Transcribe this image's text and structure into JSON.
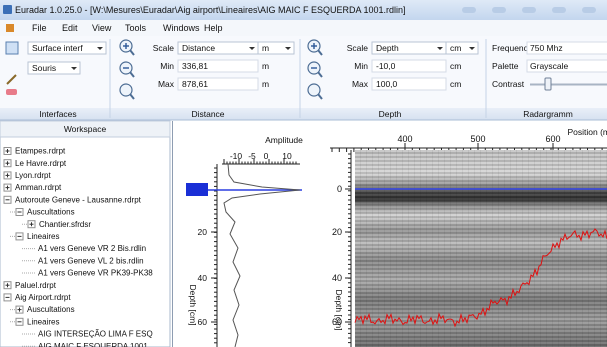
{
  "window": {
    "title": "Euradar 1.0.25.0 - [W:\\Mesures\\Euradar\\Aig airport\\Lineaires\\AIG MAIC F ESQUERDA 1001.rdlin]"
  },
  "menu": [
    "File",
    "Edit",
    "View",
    "Tools",
    "Windows",
    "Help"
  ],
  "ribbon": {
    "interfaces": {
      "label": "Interfaces",
      "interface": "Surface interf",
      "input": "Souris"
    },
    "distance": {
      "label": "Distance",
      "scale_label": "Scale",
      "scale": "Distance",
      "scale_unit": "m",
      "min_label": "Min",
      "min": "336,81",
      "min_unit": "m",
      "max_label": "Max",
      "max": "878,61",
      "max_unit": "m"
    },
    "depth": {
      "label": "Depth",
      "scale_label": "Scale",
      "scale": "Depth",
      "scale_unit": "cm",
      "min_label": "Min",
      "min": "-10,0",
      "min_unit": "cm",
      "max_label": "Max",
      "max": "100,0",
      "max_unit": "cm"
    },
    "radargramm": {
      "label": "Radargramm",
      "frequency_label": "Frequency",
      "frequency": "750 Mhz",
      "palette_label": "Palette",
      "palette": "Grayscale",
      "contrast_label": "Contrast"
    }
  },
  "workspace": {
    "title": "Workspace",
    "tree": [
      {
        "label": "Etampes.rdrpt",
        "state": "collapsed"
      },
      {
        "label": "Le Havre.rdrpt",
        "state": "collapsed"
      },
      {
        "label": "Lyon.rdrpt",
        "state": "collapsed"
      },
      {
        "label": "Amman.rdrpt",
        "state": "collapsed"
      },
      {
        "label": "Autoroute Geneve - Lausanne.rdrpt",
        "state": "expanded",
        "children": [
          {
            "label": "Auscultations",
            "state": "expanded",
            "children": [
              {
                "label": "Chantier.sfrdsr",
                "state": "collapsed"
              }
            ]
          },
          {
            "label": "Lineaires",
            "state": "expanded",
            "children": [
              {
                "label": "A1 vers Geneve VR 2 Bis.rdlin"
              },
              {
                "label": "A1 vers Geneve VL 2 bis.rdlin"
              },
              {
                "label": "A1 vers Geneve VR PK39-PK38"
              }
            ]
          }
        ]
      },
      {
        "label": "Paluel.rdrpt",
        "state": "collapsed"
      },
      {
        "label": "Aig Airport.rdrpt",
        "state": "expanded",
        "children": [
          {
            "label": "Auscultations",
            "state": "collapsed"
          },
          {
            "label": "Lineaires",
            "state": "expanded",
            "children": [
              {
                "label": "AIG INTERSEÇÃO LIMA F ESQ"
              },
              {
                "label": "AIG MAIC F ESQUERDA 1001"
              }
            ]
          }
        ]
      }
    ]
  },
  "amplitude_plot": {
    "title": "Amplitude",
    "x_ticks": [
      -10,
      -5,
      0,
      10
    ],
    "y_label": "Depth [cm]",
    "y_ticks": [
      20,
      40,
      60
    ]
  },
  "radargram": {
    "x_label": "Position (m",
    "x_ticks": [
      400,
      500,
      600
    ],
    "y_label": "Depth [cm]",
    "y_ticks": [
      0,
      20,
      40,
      60
    ]
  }
}
